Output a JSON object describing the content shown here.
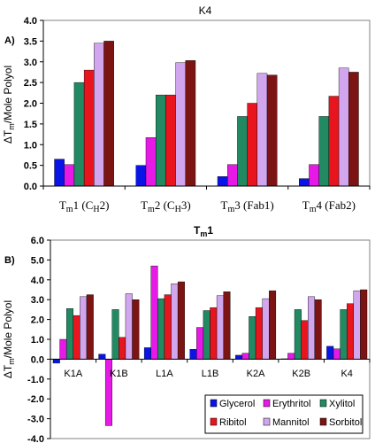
{
  "colors": {
    "Glycerol": "#0a14e6",
    "Erythritol": "#e619e6",
    "Xylitol": "#218a63",
    "Ribitol": "#e8141e",
    "Mannitol": "#d2a6ee",
    "Sorbitol": "#7d1414"
  },
  "chart_data": [
    {
      "type": "bar",
      "panel_label": "A)",
      "title": "K4",
      "ylabel": "",
      "ylim": [
        0,
        4.0
      ],
      "yticks": [
        "0.0",
        "0.5",
        "1.0",
        "1.5",
        "2.0",
        "2.5",
        "3.0",
        "3.5",
        "4.0"
      ],
      "categories": [
        "Tm1 (CH2)",
        "Tm2 (CH3)",
        "Tm3 (Fab1)",
        "Tm4 (Fab2)"
      ],
      "category_parts": [
        {
          "a": "T",
          "sub": "m",
          "b": "1 (C",
          "sub2": "H",
          "c": "2)"
        },
        {
          "a": "T",
          "sub": "m",
          "b": "2 (C",
          "sub2": "H",
          "c": "3)"
        },
        {
          "a": "T",
          "sub": "m",
          "b": "3 (Fab1)",
          "sub2": "",
          "c": ""
        },
        {
          "a": "T",
          "sub": "m",
          "b": "4 (Fab2)",
          "sub2": "",
          "c": ""
        }
      ],
      "series": [
        {
          "name": "Glycerol",
          "values": [
            0.65,
            0.5,
            0.23,
            0.18
          ]
        },
        {
          "name": "Erythritol",
          "values": [
            0.52,
            1.17,
            0.52,
            0.52
          ]
        },
        {
          "name": "Xylitol",
          "values": [
            2.5,
            2.2,
            1.68,
            1.68
          ]
        },
        {
          "name": "Ribitol",
          "values": [
            2.8,
            2.2,
            2.0,
            2.17
          ]
        },
        {
          "name": "Mannitol",
          "values": [
            3.45,
            2.98,
            2.72,
            2.85
          ]
        },
        {
          "name": "Sorbitol",
          "values": [
            3.5,
            3.03,
            2.68,
            2.75
          ]
        }
      ]
    },
    {
      "type": "bar",
      "panel_label": "B)",
      "title": "Tm1",
      "title_parts": {
        "a": "T",
        "sub": "m",
        "b": "1"
      },
      "ylabel": "ΔTm/Mole Polyol",
      "ylim": [
        -4.0,
        6.0
      ],
      "yticks": [
        "-4.0",
        "-3.0",
        "-2.0",
        "-1.0",
        "0.0",
        "1.0",
        "2.0",
        "3.0",
        "4.0",
        "5.0",
        "6.0"
      ],
      "categories": [
        "K1A",
        "K1B",
        "L1A",
        "L1B",
        "K2A",
        "K2B",
        "K4"
      ],
      "legend_position": "bottom-right",
      "series": [
        {
          "name": "Glycerol",
          "values": [
            -0.2,
            0.25,
            0.58,
            0.5,
            0.2,
            0.02,
            0.65
          ]
        },
        {
          "name": "Erythritol",
          "values": [
            1.0,
            -3.35,
            4.7,
            1.6,
            0.3,
            0.3,
            0.52
          ]
        },
        {
          "name": "Xylitol",
          "values": [
            2.55,
            2.5,
            3.05,
            2.45,
            2.15,
            2.5,
            2.5
          ]
        },
        {
          "name": "Ribitol",
          "values": [
            2.2,
            1.1,
            3.25,
            2.6,
            2.6,
            1.95,
            2.8
          ]
        },
        {
          "name": "Mannitol",
          "values": [
            3.15,
            3.3,
            3.8,
            3.2,
            3.05,
            3.15,
            3.45
          ]
        },
        {
          "name": "Sorbitol",
          "values": [
            3.25,
            3.0,
            3.9,
            3.4,
            3.45,
            3.0,
            3.5
          ]
        }
      ]
    }
  ],
  "ylabel_a": {
    "a": "ΔT",
    "sub": "m",
    "b": "/Mole Polyol"
  },
  "ylabel_b": {
    "a": "ΔT",
    "sub": "m",
    "b": "/Mole Polyol"
  }
}
